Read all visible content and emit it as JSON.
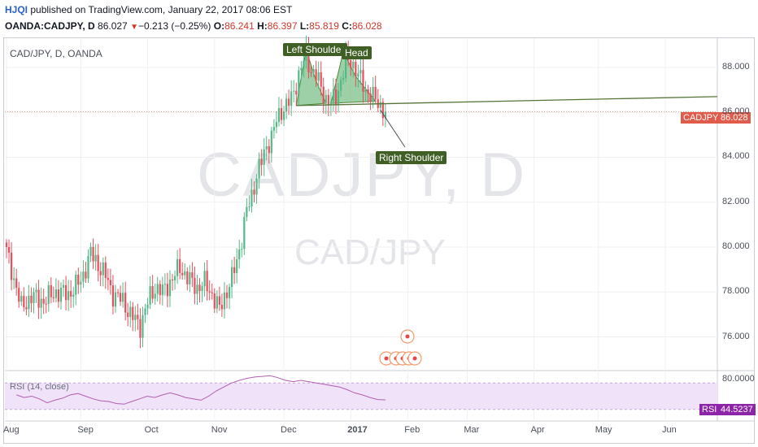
{
  "header": {
    "author": "HJQI",
    "published": "published on TradingView.com, January 22, 2017 08:06 EST",
    "ticker": "OANDA:CADJPY, D",
    "last": "86.027",
    "change": "−0.213 (−0.25%)",
    "o_label": "O:",
    "o_val": "86.241",
    "h_label": "H:",
    "h_val": "86.397",
    "l_label": "L:",
    "l_val": "85.819",
    "c_label": "C:",
    "c_val": "86.028"
  },
  "symbol_label": "CAD/JPY, D, OANDA",
  "watermark": {
    "big": "CADJPY, D",
    "small": "CAD/JPY"
  },
  "annotations": {
    "left_shoulder": "Left Shoulder",
    "head": "Head",
    "right_shoulder": "Right Shoulder"
  },
  "price_tag": {
    "name": "CADJPY",
    "value": "86.028"
  },
  "rsi": {
    "label": "RSI (14, close)",
    "tag_name": "RSI",
    "tag_value": "44.5237",
    "axis_label": "80.0000"
  },
  "colors": {
    "up": "#53b987",
    "down": "#eb4d5c",
    "neckline": "#55743a",
    "pattern_fill": "#7cc08a",
    "rsi_line": "#b05fb0",
    "rsi_band": "#f0e2f8",
    "price_tag": "#e15b4b",
    "rsi_tag": "#8e24aa"
  },
  "chart_data": {
    "type": "candlestick",
    "ylim": [
      74.5,
      89.3
    ],
    "y_ticks": [
      "88.000",
      "86.000",
      "84.000",
      "82.000",
      "80.000",
      "78.000",
      "76.000"
    ],
    "x_ticks": [
      "Aug",
      "Sep",
      "Oct",
      "Nov",
      "Dec",
      "2017",
      "Feb",
      "Mar",
      "Apr",
      "May",
      "Jun"
    ],
    "close_path": [
      [
        0,
        79.8
      ],
      [
        3,
        78.6
      ],
      [
        6,
        77.3
      ],
      [
        10,
        77.8
      ],
      [
        15,
        77.6
      ],
      [
        20,
        78.0
      ],
      [
        25,
        77.9
      ],
      [
        30,
        78.5
      ],
      [
        34,
        79.7
      ],
      [
        36,
        79.4
      ],
      [
        40,
        78.7
      ],
      [
        43,
        77.9
      ],
      [
        47,
        77.6
      ],
      [
        50,
        77.0
      ],
      [
        54,
        76.5
      ],
      [
        56,
        77.2
      ],
      [
        58,
        77.8
      ],
      [
        60,
        78.2
      ],
      [
        63,
        78.0
      ],
      [
        67,
        78.6
      ],
      [
        70,
        79.1
      ],
      [
        74,
        78.5
      ],
      [
        77,
        78.2
      ],
      [
        80,
        78.4
      ],
      [
        83,
        77.9
      ],
      [
        86,
        77.2
      ],
      [
        88,
        77.8
      ],
      [
        91,
        78.6
      ],
      [
        93,
        79.4
      ],
      [
        95,
        80.4
      ],
      [
        97,
        81.6
      ],
      [
        99,
        82.3
      ],
      [
        101,
        83.2
      ],
      [
        103,
        83.8
      ],
      [
        105,
        84.5
      ],
      [
        107,
        84.9
      ],
      [
        109,
        85.6
      ],
      [
        111,
        86.1
      ],
      [
        113,
        86.3
      ],
      [
        115,
        86.6
      ],
      [
        117,
        87.3
      ],
      [
        119,
        88.0
      ],
      [
        121,
        88.5
      ],
      [
        123,
        87.9
      ],
      [
        125,
        87.6
      ],
      [
        127,
        87.1
      ],
      [
        129,
        86.6
      ],
      [
        131,
        86.4
      ],
      [
        133,
        86.7
      ],
      [
        135,
        87.4
      ],
      [
        137,
        88.2
      ],
      [
        139,
        88.3
      ],
      [
        141,
        87.9
      ],
      [
        143,
        87.4
      ],
      [
        145,
        87.0
      ],
      [
        147,
        86.8
      ],
      [
        149,
        86.5
      ],
      [
        151,
        86.3
      ],
      [
        153,
        86.03
      ]
    ],
    "rsi_values": [
      52,
      48,
      50,
      46,
      40,
      44,
      47,
      52,
      54,
      50,
      46,
      43,
      42,
      39,
      38,
      42,
      46,
      50,
      48,
      52,
      55,
      52,
      48,
      46,
      44,
      50,
      58,
      64,
      70,
      74,
      77,
      79,
      80,
      81,
      78,
      74,
      72,
      74,
      72,
      70,
      68,
      66,
      64,
      60,
      55,
      52,
      48,
      45,
      44.5
    ]
  }
}
